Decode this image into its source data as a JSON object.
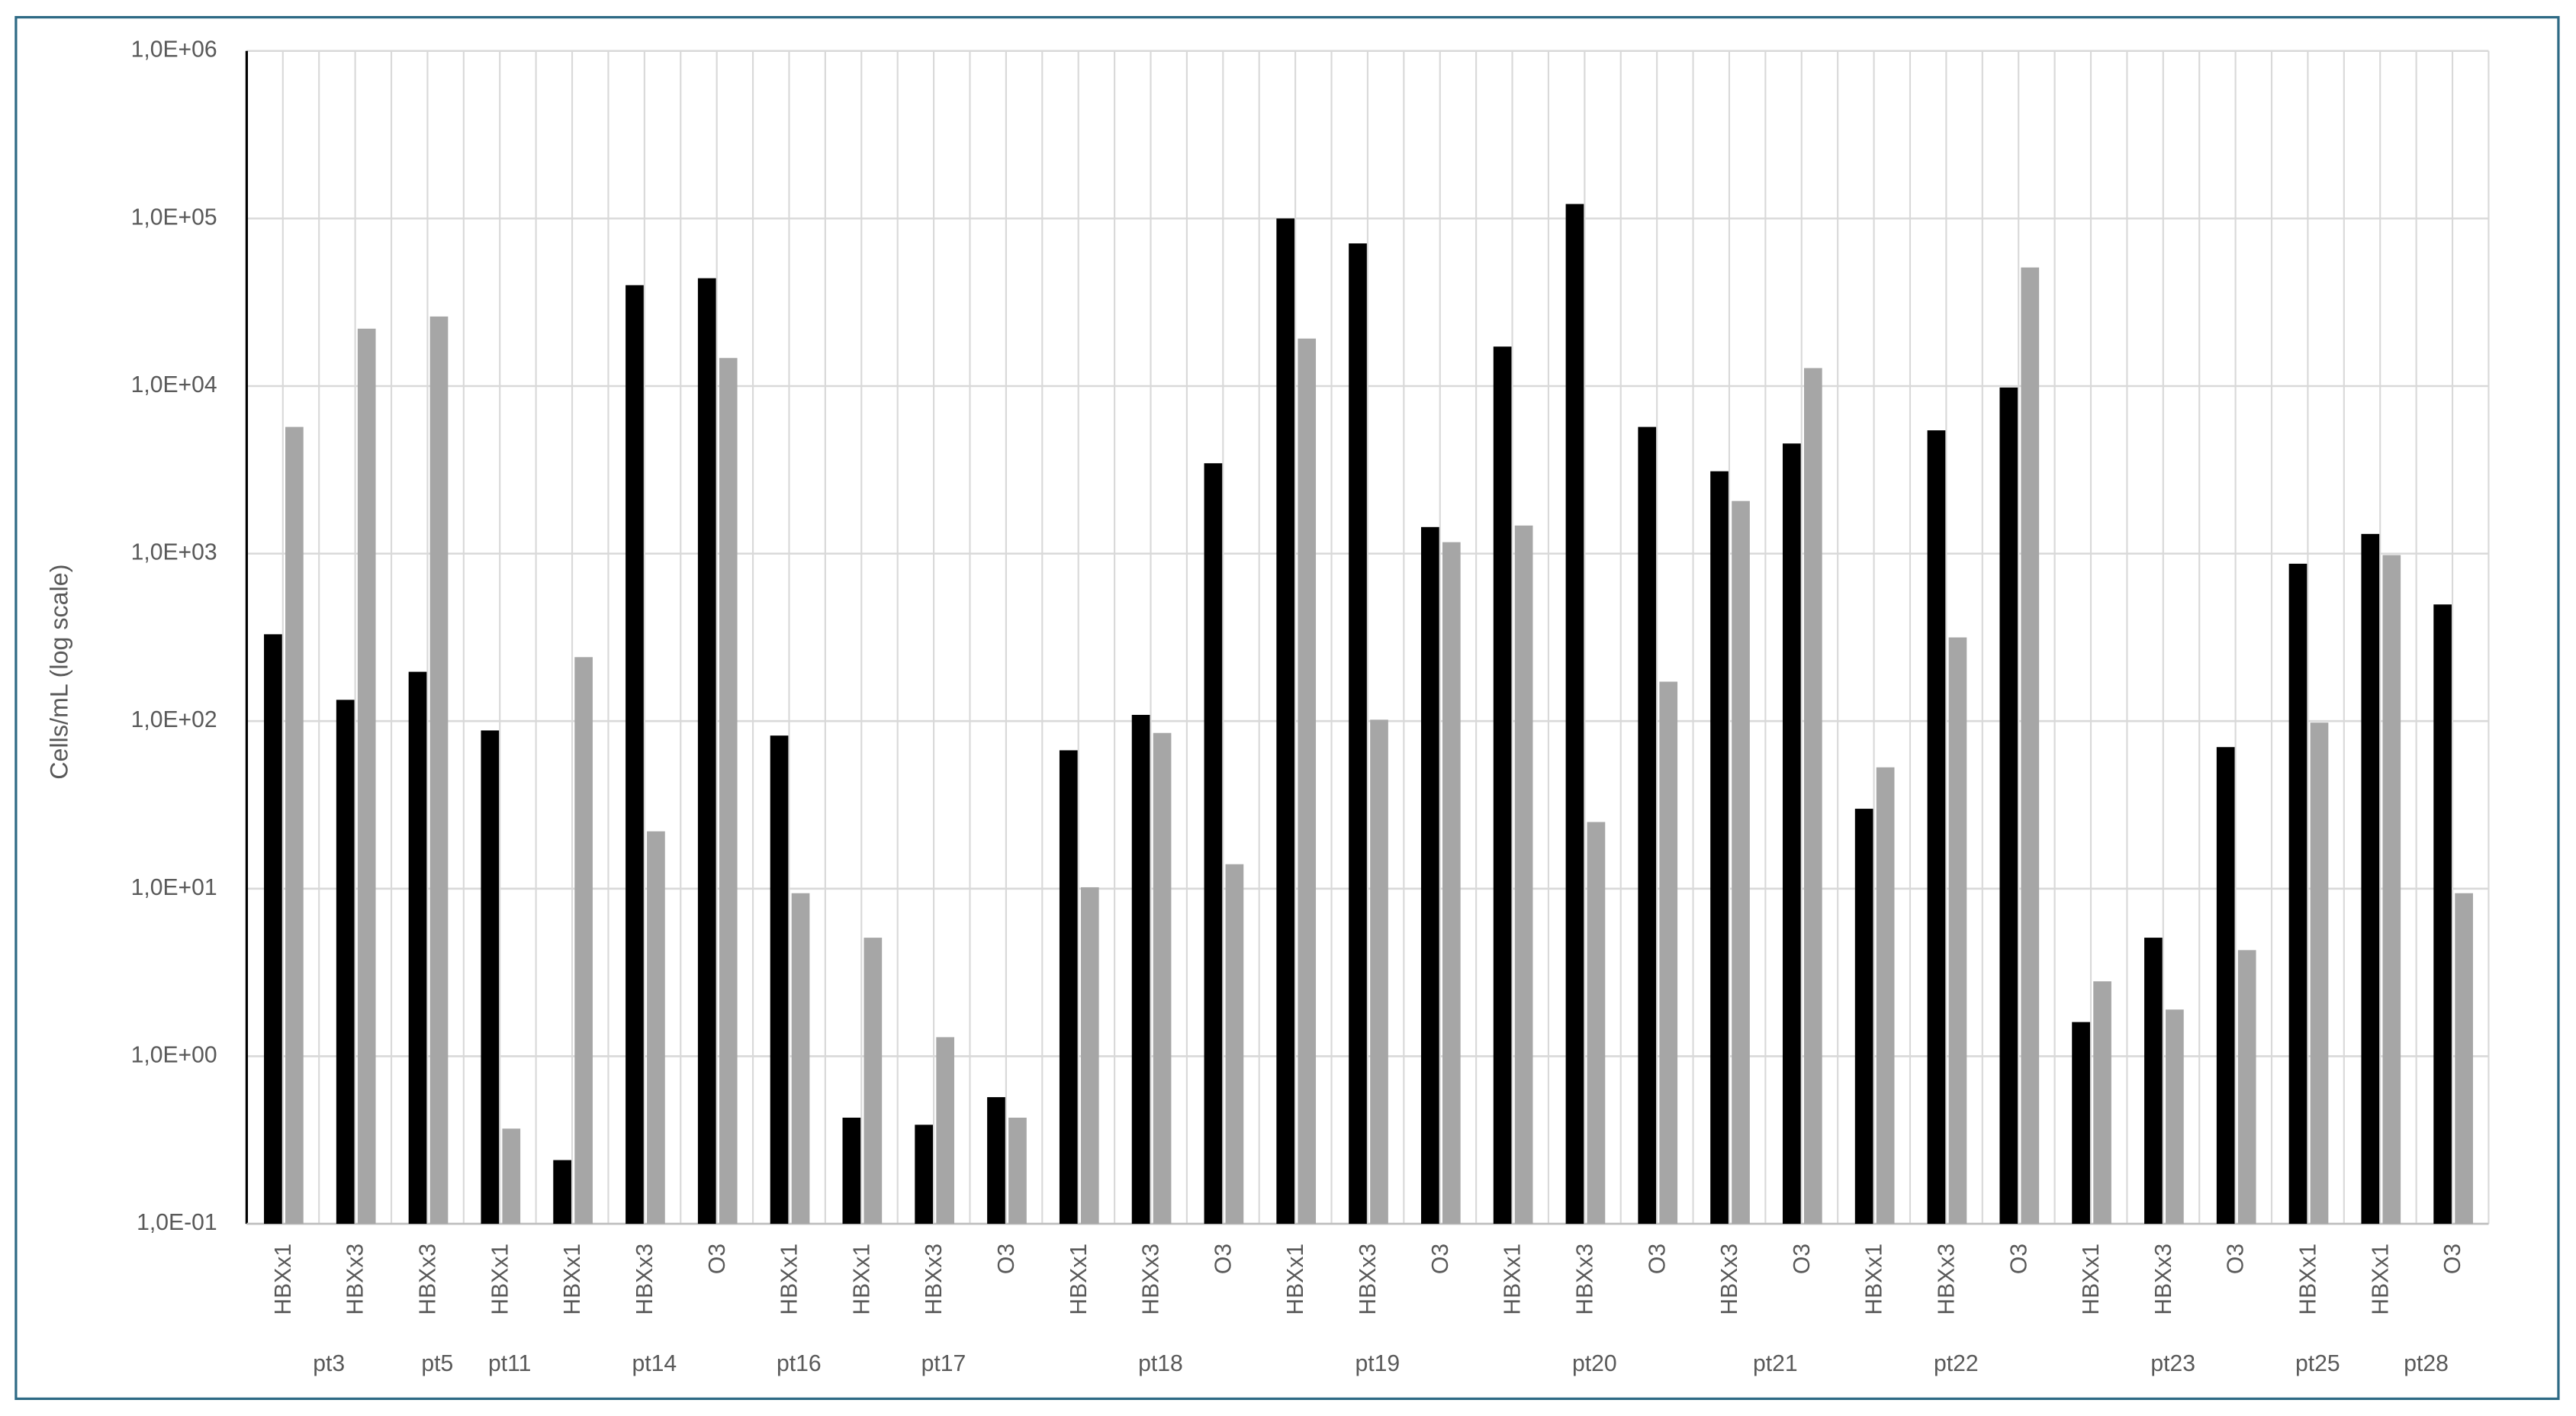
{
  "chart_data": {
    "type": "bar",
    "y_label": "Cells/mL (log scale)",
    "log_scale": true,
    "grid": true,
    "ylim": [
      0.1,
      1000000
    ],
    "yticks": [
      {
        "value": 0.1,
        "label": "1,0E-01"
      },
      {
        "value": 1,
        "label": "1,0E+00"
      },
      {
        "value": 10,
        "label": "1,0E+01"
      },
      {
        "value": 100,
        "label": "1,0E+02"
      },
      {
        "value": 1000,
        "label": "1,0E+03"
      },
      {
        "value": 10000,
        "label": "1,0E+04"
      },
      {
        "value": 100000,
        "label": "1,0E+05"
      },
      {
        "value": 1000000,
        "label": "1,0E+06"
      }
    ],
    "groups": [
      {
        "label": "pt3",
        "categories": [
          "HBXx1",
          "HBXx3"
        ]
      },
      {
        "label": "pt5",
        "categories": [
          "HBXx3"
        ]
      },
      {
        "label": "pt11",
        "categories": [
          "HBXx1"
        ]
      },
      {
        "label": "pt14",
        "categories": [
          "HBXx1",
          "HBXx3",
          "O3"
        ]
      },
      {
        "label": "pt16",
        "categories": [
          "HBXx1"
        ]
      },
      {
        "label": "pt17",
        "categories": [
          "HBXx1",
          "HBXx3",
          "O3"
        ]
      },
      {
        "label": "pt18",
        "categories": [
          "HBXx1",
          "HBXx3",
          "O3"
        ]
      },
      {
        "label": "pt19",
        "categories": [
          "HBXx1",
          "HBXx3",
          "O3"
        ]
      },
      {
        "label": "pt20",
        "categories": [
          "HBXx1",
          "HBXx3",
          "O3"
        ]
      },
      {
        "label": "pt21",
        "categories": [
          "HBXx3",
          "O3"
        ]
      },
      {
        "label": "pt22",
        "categories": [
          "HBXx1",
          "HBXx3",
          "O3"
        ]
      },
      {
        "label": "pt23",
        "categories": [
          "HBXx1",
          "HBXx3",
          "O3"
        ]
      },
      {
        "label": "pt25",
        "categories": [
          "HBXx1"
        ]
      },
      {
        "label": "pt28",
        "categories": [
          "HBXx1",
          "O3"
        ]
      }
    ],
    "series": [
      {
        "color": "#000000",
        "values": [
          330,
          134,
          197,
          88,
          0.24,
          40000,
          44000,
          82,
          0.43,
          0.39,
          0.57,
          67,
          109,
          3460,
          100000,
          71000,
          1440,
          17200,
          122000,
          5700,
          3100,
          4540,
          30,
          5440,
          9800,
          1.6,
          5.1,
          70,
          870,
          1310,
          497
        ]
      },
      {
        "color": "#a6a6a6",
        "values": [
          5700,
          22000,
          26000,
          0.37,
          241,
          22,
          14700,
          9.4,
          5.1,
          1.3,
          0.43,
          10.2,
          85,
          14,
          19200,
          102,
          1170,
          1470,
          25,
          172,
          2060,
          12800,
          53,
          316,
          51000,
          2.8,
          1.9,
          4.3,
          98,
          980,
          9.4
        ]
      }
    ]
  }
}
